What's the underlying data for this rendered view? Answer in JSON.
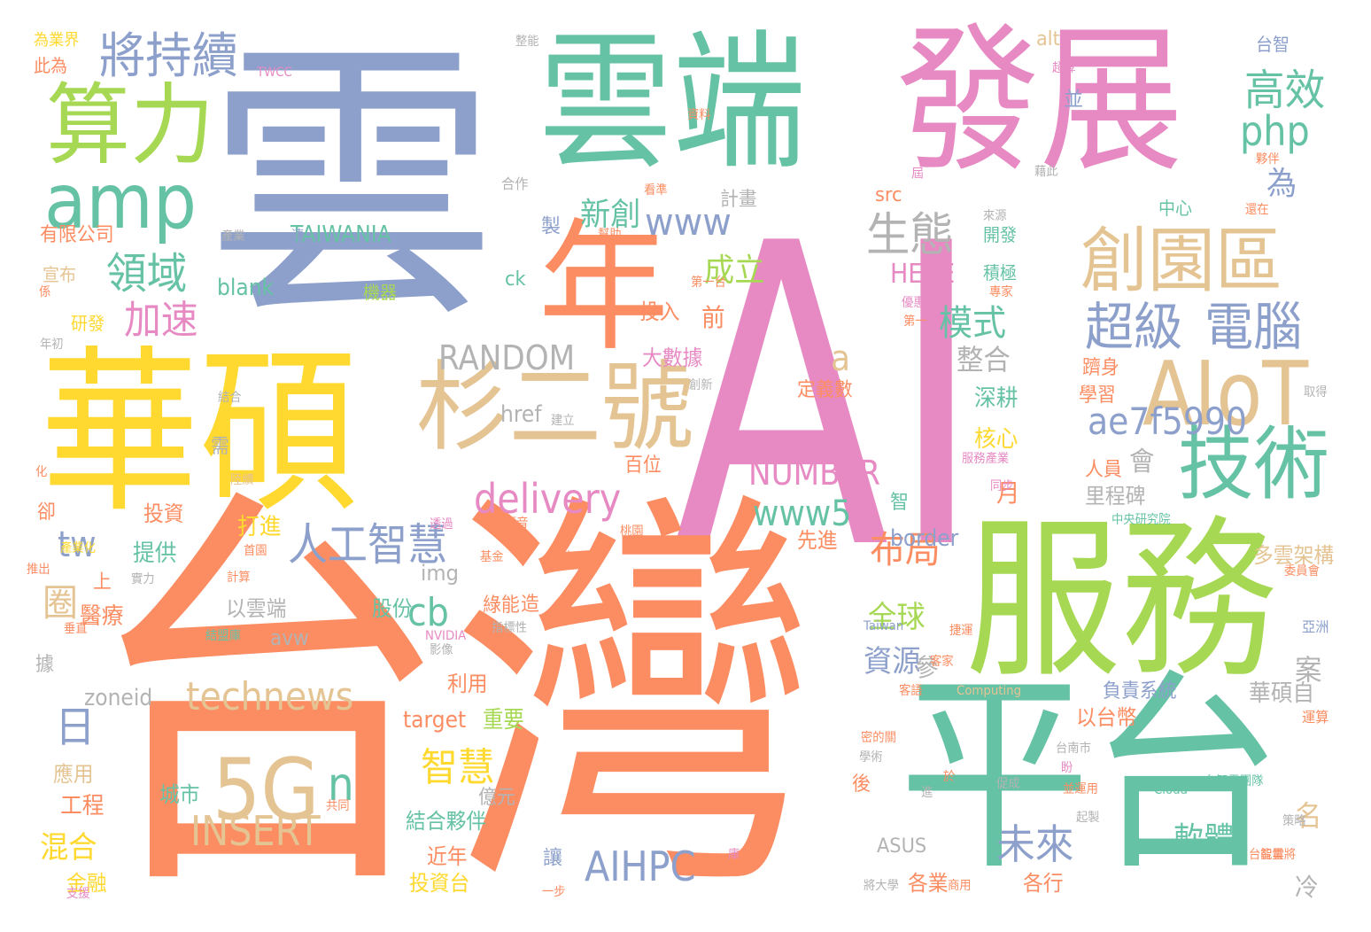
{
  "colors": {
    "blue": "#8da0cb",
    "green": "#66c2a5",
    "orange": "#fc8d62",
    "pink": "#e78ac3",
    "lime": "#a6d854",
    "yellow": "#ffd92f",
    "tan": "#e5c494",
    "gray": "#b3b3b3"
  },
  "words": [
    {
      "text": "雲"
    },
    {
      "text": "AI"
    },
    {
      "text": "台灣"
    },
    {
      "text": "雲端"
    },
    {
      "text": "發展"
    },
    {
      "text": "華碩"
    },
    {
      "text": "服務"
    },
    {
      "text": "平台"
    },
    {
      "text": "年"
    },
    {
      "text": "杉二號"
    },
    {
      "text": "創園區"
    },
    {
      "text": "技術"
    },
    {
      "text": "AIoT"
    },
    {
      "text": "算力"
    },
    {
      "text": "amp"
    },
    {
      "text": "將持續"
    },
    {
      "text": "超級"
    },
    {
      "text": "電腦"
    },
    {
      "text": "5G"
    },
    {
      "text": "INSERT"
    },
    {
      "text": "technews"
    },
    {
      "text": "delivery"
    },
    {
      "text": "人工智慧"
    },
    {
      "text": "ae7f5990"
    },
    {
      "text": "AIHPC"
    },
    {
      "text": "生態"
    },
    {
      "text": "領域"
    },
    {
      "text": "加速"
    },
    {
      "text": "高效"
    },
    {
      "text": "php"
    },
    {
      "text": "RANDOM"
    },
    {
      "text": "NUMBER"
    },
    {
      "text": "www5"
    },
    {
      "text": "www"
    },
    {
      "text": "新創"
    },
    {
      "text": "布局"
    },
    {
      "text": "未來"
    },
    {
      "text": "智慧"
    },
    {
      "text": "模式"
    },
    {
      "text": "成立"
    },
    {
      "text": "tw"
    },
    {
      "text": "cb"
    },
    {
      "text": "n"
    },
    {
      "text": "a"
    },
    {
      "text": "日"
    },
    {
      "text": "圈"
    },
    {
      "text": "軟體"
    },
    {
      "text": "資源"
    },
    {
      "text": "全球"
    },
    {
      "text": "整合"
    },
    {
      "text": "HERE"
    },
    {
      "text": "TAIWANIA"
    },
    {
      "text": "blank"
    },
    {
      "text": "zoneid"
    },
    {
      "text": "border"
    },
    {
      "text": "avw"
    },
    {
      "text": "href"
    },
    {
      "text": "target"
    },
    {
      "text": "重要"
    },
    {
      "text": "大數據"
    },
    {
      "text": "投入"
    },
    {
      "text": "前"
    },
    {
      "text": "定義數"
    },
    {
      "text": "深耕"
    },
    {
      "text": "核心"
    },
    {
      "text": "里程碑"
    },
    {
      "text": "月"
    },
    {
      "text": "先進"
    },
    {
      "text": "打進"
    },
    {
      "text": "提供"
    },
    {
      "text": "醫療"
    },
    {
      "text": "股份"
    },
    {
      "text": "img"
    },
    {
      "text": "以雲端"
    },
    {
      "text": "結合夥伴"
    },
    {
      "text": "近年"
    },
    {
      "text": "投資台"
    },
    {
      "text": "城市"
    },
    {
      "text": "混合"
    },
    {
      "text": "工程"
    },
    {
      "text": "金融"
    },
    {
      "text": "應用"
    },
    {
      "text": "以台幣"
    },
    {
      "text": "華碩自"
    },
    {
      "text": "負責系統"
    },
    {
      "text": "多雲架構"
    },
    {
      "text": "人員"
    },
    {
      "text": "各業"
    },
    {
      "text": "各行"
    },
    {
      "text": "ASUS"
    },
    {
      "text": "億元"
    },
    {
      "text": "利用"
    },
    {
      "text": "百位"
    },
    {
      "text": "投資"
    },
    {
      "text": "有限公司"
    },
    {
      "text": "宣布"
    },
    {
      "text": "研發"
    },
    {
      "text": "此為"
    },
    {
      "text": "為業界"
    },
    {
      "text": "機器"
    },
    {
      "text": "計畫"
    },
    {
      "text": "製"
    },
    {
      "text": "合作"
    },
    {
      "text": "中心"
    },
    {
      "text": "開發"
    },
    {
      "text": "積極"
    },
    {
      "text": "src"
    },
    {
      "text": "ck"
    },
    {
      "text": "alt"
    },
    {
      "text": "台智"
    },
    {
      "text": "為"
    },
    {
      "text": "並"
    },
    {
      "text": "會"
    },
    {
      "text": "案"
    },
    {
      "text": "名"
    },
    {
      "text": "冷"
    },
    {
      "text": "參"
    },
    {
      "text": "後"
    },
    {
      "text": "上"
    },
    {
      "text": "卻"
    },
    {
      "text": "需"
    },
    {
      "text": "智"
    },
    {
      "text": "造"
    },
    {
      "text": "讓"
    },
    {
      "text": "據"
    },
    {
      "text": "綠能"
    },
    {
      "text": "學習"
    },
    {
      "text": "躋身"
    },
    {
      "text": "亞洲"
    },
    {
      "text": "運算"
    },
    {
      "text": "TWCC"
    },
    {
      "text": "資料"
    },
    {
      "text": "看準"
    },
    {
      "text": "幫助"
    },
    {
      "text": "產業"
    },
    {
      "text": "速"
    },
    {
      "text": "來源"
    },
    {
      "text": "第一台"
    },
    {
      "text": "專家"
    },
    {
      "text": "優惠"
    },
    {
      "text": "第一"
    },
    {
      "text": "藉此"
    },
    {
      "text": "夥伴"
    },
    {
      "text": "還在"
    },
    {
      "text": "超算"
    },
    {
      "text": "屆"
    },
    {
      "text": "整能"
    },
    {
      "text": "結合"
    },
    {
      "text": "創新"
    },
    {
      "text": "建立"
    },
    {
      "text": "服務產業"
    },
    {
      "text": "同步"
    },
    {
      "text": "取得"
    },
    {
      "text": "透過"
    },
    {
      "text": "語音"
    },
    {
      "text": "科技"
    },
    {
      "text": "桃園"
    },
    {
      "text": "首園"
    },
    {
      "text": "計算"
    },
    {
      "text": "實力"
    },
    {
      "text": "基金"
    },
    {
      "text": "指標性"
    },
    {
      "text": "推出"
    },
    {
      "text": "產業化"
    },
    {
      "text": "化"
    },
    {
      "text": "陸續"
    },
    {
      "text": "垂直"
    },
    {
      "text": "結盟庫"
    },
    {
      "text": "NVIDIA"
    },
    {
      "text": "影像"
    },
    {
      "text": "Taiwan"
    },
    {
      "text": "捷運"
    },
    {
      "text": "客家"
    },
    {
      "text": "Computing"
    },
    {
      "text": "客語"
    },
    {
      "text": "中央研究院"
    },
    {
      "text": "委員會"
    },
    {
      "text": "台南市"
    },
    {
      "text": "密的關"
    },
    {
      "text": "學術"
    },
    {
      "text": "於"
    },
    {
      "text": "進"
    },
    {
      "text": "促成"
    },
    {
      "text": "並運用"
    },
    {
      "text": "Cloud"
    },
    {
      "text": "台智雲團隊"
    },
    {
      "text": "策略"
    },
    {
      "text": "起製"
    },
    {
      "text": "台智雲將"
    },
    {
      "text": "庫"
    },
    {
      "text": "能量"
    },
    {
      "text": "將大學"
    },
    {
      "text": "商用"
    },
    {
      "text": "一步"
    },
    {
      "text": "共同"
    },
    {
      "text": "AIF"
    },
    {
      "text": "支援"
    },
    {
      "text": "年初"
    },
    {
      "text": "係"
    },
    {
      "text": "盼"
    }
  ]
}
